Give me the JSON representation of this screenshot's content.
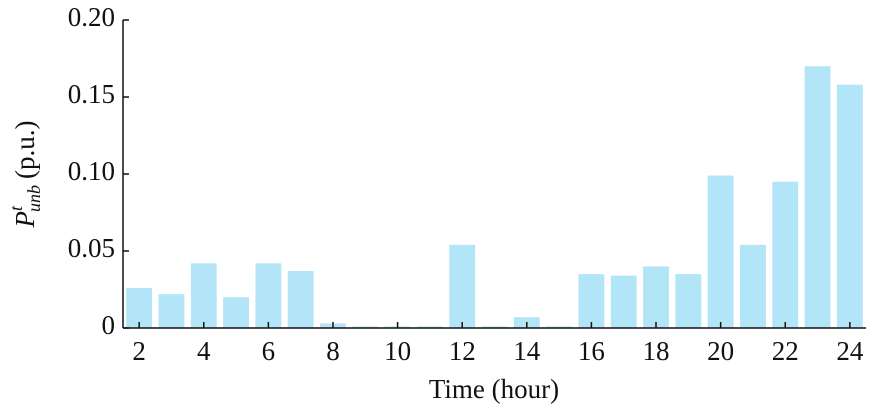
{
  "chart_data": {
    "type": "bar",
    "x": [
      2,
      3,
      4,
      5,
      6,
      7,
      8,
      9,
      10,
      11,
      12,
      13,
      14,
      15,
      16,
      17,
      18,
      19,
      20,
      21,
      22,
      23,
      24
    ],
    "values": [
      0.026,
      0.022,
      0.042,
      0.02,
      0.042,
      0.037,
      0.003,
      0.001,
      0.001,
      0.001,
      0.054,
      0.001,
      0.007,
      0.001,
      0.035,
      0.034,
      0.04,
      0.035,
      0.099,
      0.054,
      0.095,
      0.17,
      0.158
    ],
    "color": "#b3e5f8",
    "xlabel": "Time (hour)",
    "ylabel": {
      "symbol": "P",
      "sup": "t",
      "sub": "unb",
      "unit": "(p.u.)"
    },
    "xlim": [
      1.5,
      24.5
    ],
    "xticks": [
      2,
      4,
      6,
      8,
      10,
      12,
      14,
      16,
      18,
      20,
      22,
      24
    ],
    "ylim": [
      0,
      0.2
    ],
    "yticks": [
      0,
      0.05,
      {
        "value": 0.1,
        "label": "0.10"
      },
      0.15,
      {
        "value": 0.2,
        "label": "0.20"
      }
    ],
    "grid": false
  }
}
